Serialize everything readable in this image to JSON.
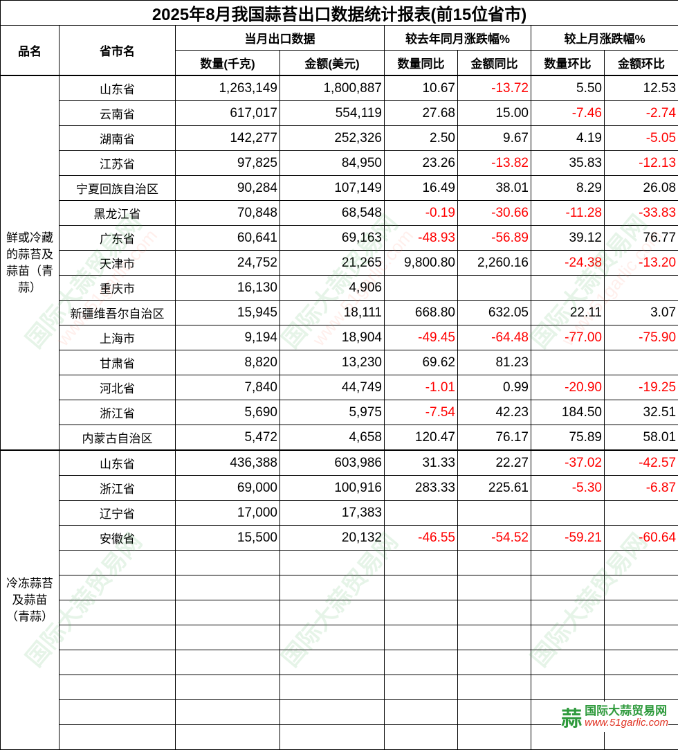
{
  "title": "2025年8月我国蒜苔出口数据统计报表(前15位省市)",
  "headers": {
    "product": "品名",
    "province": "省市名",
    "current_group": "当月出口数据",
    "yoy_group": "较去年同月涨跌幅%",
    "mom_group": "较上月涨跌幅%",
    "qty": "数量(千克)",
    "amount": "金额(美元)",
    "qty_yoy": "数量同比",
    "amount_yoy": "金额同比",
    "qty_mom": "数量环比",
    "amount_mom": "金额环比"
  },
  "colors": {
    "negative": "#ff0000",
    "watermark_green": "#3caa50",
    "watermark_red": "#ff7864"
  },
  "groups": [
    {
      "category": "鲜或冷藏的蒜苔及蒜苗（青蒜）",
      "empty_rows": 0,
      "rows": [
        [
          "山东省",
          "1,263,149",
          "1,800,887",
          "10.67",
          "-13.72",
          "5.50",
          "12.53"
        ],
        [
          "云南省",
          "617,017",
          "554,119",
          "27.68",
          "15.00",
          "-7.46",
          "-2.74"
        ],
        [
          "湖南省",
          "142,277",
          "252,326",
          "2.50",
          "9.67",
          "4.19",
          "-5.05"
        ],
        [
          "江苏省",
          "97,825",
          "84,950",
          "23.26",
          "-13.82",
          "35.83",
          "-12.13"
        ],
        [
          "宁夏回族自治区",
          "90,284",
          "107,149",
          "16.49",
          "38.01",
          "8.29",
          "26.08"
        ],
        [
          "黑龙江省",
          "70,848",
          "68,548",
          "-0.19",
          "-30.66",
          "-11.28",
          "-33.83"
        ],
        [
          "广东省",
          "60,641",
          "69,163",
          "-48.93",
          "-56.89",
          "39.12",
          "76.77"
        ],
        [
          "天津市",
          "24,752",
          "21,265",
          "9,800.80",
          "2,260.16",
          "-24.38",
          "-13.20"
        ],
        [
          "重庆市",
          "16,130",
          "4,906",
          "",
          "",
          "",
          ""
        ],
        [
          "新疆维吾尔自治区",
          "15,945",
          "18,111",
          "668.80",
          "632.05",
          "22.11",
          "3.07"
        ],
        [
          "上海市",
          "9,194",
          "18,904",
          "-49.45",
          "-64.48",
          "-77.00",
          "-75.90"
        ],
        [
          "甘肃省",
          "8,820",
          "13,230",
          "69.62",
          "81.23",
          "",
          ""
        ],
        [
          "河北省",
          "7,840",
          "44,749",
          "-1.01",
          "0.99",
          "-20.90",
          "-19.25"
        ],
        [
          "浙江省",
          "5,690",
          "5,975",
          "-7.54",
          "42.23",
          "184.50",
          "32.51"
        ],
        [
          "内蒙古自治区",
          "5,472",
          "4,658",
          "120.47",
          "76.17",
          "75.89",
          "58.01"
        ]
      ]
    },
    {
      "category": "冷冻蒜苔及蒜苗（青蒜）",
      "empty_rows": 8,
      "rows": [
        [
          "山东省",
          "436,388",
          "603,986",
          "31.33",
          "22.27",
          "-37.02",
          "-42.57"
        ],
        [
          "浙江省",
          "69,000",
          "100,916",
          "283.33",
          "225.61",
          "-5.30",
          "-6.87"
        ],
        [
          "辽宁省",
          "17,000",
          "17,383",
          "",
          "",
          "",
          ""
        ],
        [
          "安徽省",
          "15,500",
          "20,132",
          "-46.55",
          "-54.52",
          "-59.21",
          "-60.64"
        ]
      ]
    }
  ],
  "watermark": {
    "name": "国际大蒜贸易网",
    "url": "www.51garlic.com"
  },
  "logo": {
    "mark": "蒜",
    "name": "国际大蒜贸易网",
    "url": "www.51garlic.com"
  }
}
